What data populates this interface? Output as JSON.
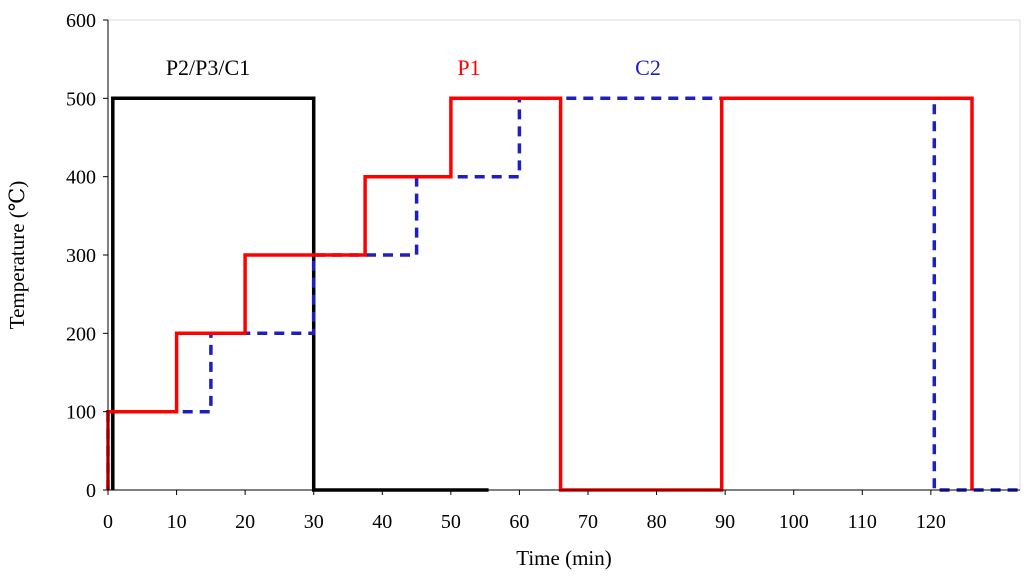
{
  "chart_data": {
    "type": "line",
    "title": "",
    "xlabel": "Time (min)",
    "ylabel": "Temperature (℃)",
    "xlim": [
      0,
      133
    ],
    "ylim": [
      0,
      600
    ],
    "xticks": [
      0,
      10,
      20,
      30,
      40,
      50,
      60,
      70,
      80,
      90,
      100,
      110,
      120
    ],
    "yticks": [
      0,
      100,
      200,
      300,
      400,
      500,
      600
    ],
    "grid": false,
    "legend": "inline-labels-top",
    "series": [
      {
        "name": "P2/P3/C1",
        "color": "#000000",
        "dash": "solid",
        "x": [
          0.7,
          0.7,
          30,
          30,
          55.5
        ],
        "y": [
          0,
          500,
          500,
          0,
          0
        ]
      },
      {
        "name": "P1",
        "color": "#ff0000",
        "dash": "solid",
        "x": [
          0,
          0,
          10,
          10,
          20,
          20,
          37.5,
          37.5,
          50,
          50,
          66,
          66,
          89.5,
          89.5,
          126,
          126
        ],
        "y": [
          0,
          100,
          100,
          200,
          200,
          300,
          300,
          400,
          400,
          500,
          500,
          0,
          0,
          500,
          500,
          0
        ]
      },
      {
        "name": "C2",
        "color": "#1f1fbf",
        "dash": "dashed",
        "x": [
          0,
          0,
          15,
          15,
          30,
          30,
          45,
          45,
          60,
          60,
          120.5,
          120.5,
          133
        ],
        "y": [
          0,
          100,
          100,
          200,
          200,
          300,
          300,
          400,
          400,
          500,
          500,
          0,
          0
        ]
      }
    ]
  }
}
